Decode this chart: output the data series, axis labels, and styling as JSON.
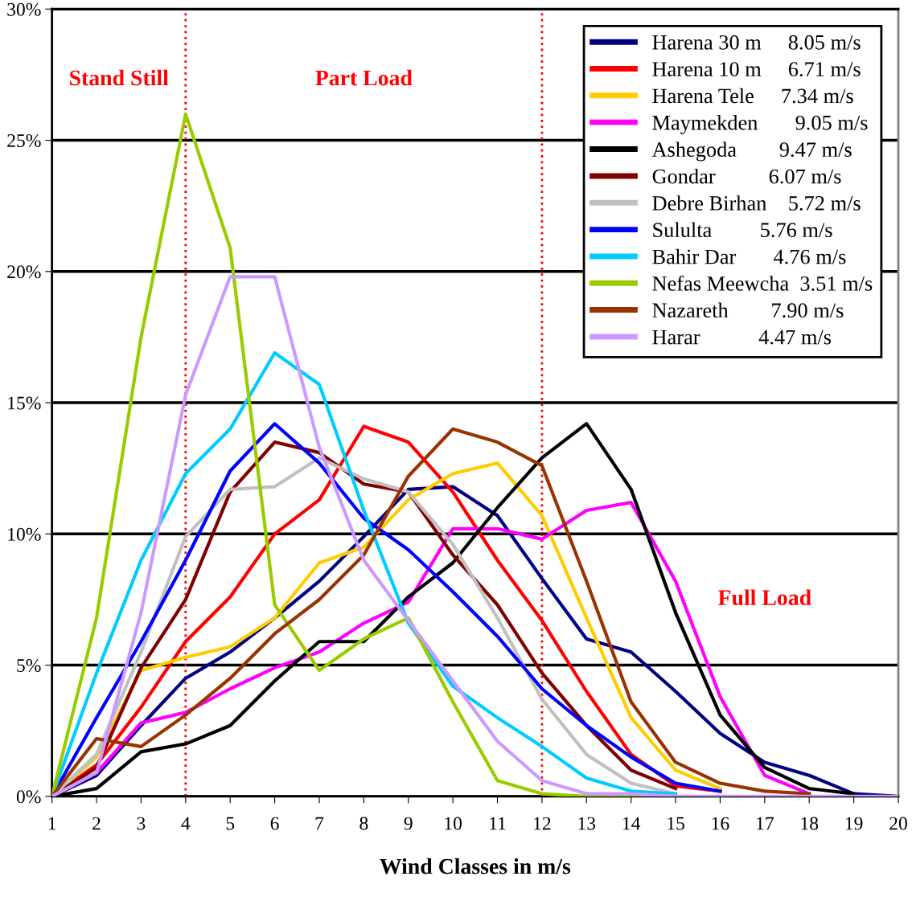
{
  "chart_data": {
    "type": "line",
    "xlabel": "Wind Classes in m/s",
    "x": [
      1,
      2,
      3,
      4,
      5,
      6,
      7,
      8,
      9,
      10,
      11,
      12,
      13,
      14,
      15,
      16,
      17,
      18,
      19,
      20
    ],
    "xlim": [
      1,
      20
    ],
    "xticks": [
      1,
      2,
      3,
      4,
      5,
      6,
      7,
      8,
      9,
      10,
      11,
      12,
      13,
      14,
      15,
      16,
      17,
      18,
      19,
      20
    ],
    "ylim": [
      0,
      30
    ],
    "yticks": [
      {
        "value": 0,
        "label": "0%"
      },
      {
        "value": 5,
        "label": "5%"
      },
      {
        "value": 10,
        "label": "10%"
      },
      {
        "value": 15,
        "label": "15%"
      },
      {
        "value": 20,
        "label": "20%"
      },
      {
        "value": 25,
        "label": "25%"
      },
      {
        "value": 30,
        "label": "30%"
      }
    ],
    "grid": "y",
    "legend": "top right",
    "ref_lines": [
      {
        "axis": "x",
        "value": 4,
        "color": "#ff0000",
        "line_style": "dotted"
      },
      {
        "axis": "x",
        "value": 12,
        "color": "#ff0000",
        "line_style": "dotted"
      }
    ],
    "annotations": [
      "Stand Still",
      "Part Load",
      "Full Load"
    ],
    "series": [
      {
        "name": "Harena 30 m     8.05 m/s",
        "color": "#000080",
        "values": [
          0,
          0.8,
          2.7,
          4.5,
          5.5,
          6.8,
          8.2,
          9.9,
          11.7,
          11.8,
          10.7,
          8.3,
          6.0,
          5.5,
          4.0,
          2.4,
          1.3,
          0.8,
          0.1,
          0
        ]
      },
      {
        "name": "Harena 10 m     6.71 m/s",
        "color": "#ff0000",
        "values": [
          0,
          1.2,
          3.4,
          5.9,
          7.6,
          10.0,
          11.3,
          14.1,
          13.5,
          11.6,
          9.0,
          6.7,
          4.0,
          1.6,
          0.4,
          0.2,
          null,
          null,
          null,
          null
        ]
      },
      {
        "name": "Harena Tele     7.34 m/s",
        "color": "#ffcc00",
        "values": [
          0,
          1.5,
          4.8,
          5.3,
          5.7,
          6.8,
          8.9,
          9.5,
          11.3,
          12.3,
          12.7,
          10.7,
          6.8,
          3.0,
          1.0,
          0.3,
          null,
          null,
          null,
          null
        ]
      },
      {
        "name": "Maymekden       9.05 m/s",
        "color": "#ff00ff",
        "values": [
          0,
          0.9,
          2.8,
          3.2,
          4.1,
          4.9,
          5.5,
          6.6,
          7.4,
          10.2,
          10.2,
          9.8,
          10.9,
          11.2,
          8.2,
          3.8,
          0.8,
          0.1,
          null,
          null
        ]
      },
      {
        "name": "Ashegoda        9.47 m/s",
        "color": "#000000",
        "values": [
          0,
          0.3,
          1.7,
          2.0,
          2.7,
          4.4,
          5.9,
          5.9,
          7.6,
          8.9,
          11.0,
          12.9,
          14.2,
          11.7,
          7.0,
          3.1,
          1.1,
          0.3,
          0.1,
          null
        ]
      },
      {
        "name": "Gondar          6.07 m/s",
        "color": "#800000",
        "values": [
          0,
          1.1,
          4.9,
          7.5,
          11.6,
          13.5,
          13.1,
          11.9,
          11.6,
          9.2,
          7.3,
          4.7,
          2.7,
          1.0,
          0.3,
          null,
          null,
          null,
          null,
          null
        ]
      },
      {
        "name": "Debre Birhan    5.72 m/s",
        "color": "#c0c0c0",
        "values": [
          0,
          1.6,
          5.5,
          9.9,
          11.7,
          11.8,
          12.9,
          12.1,
          11.6,
          9.6,
          6.8,
          3.7,
          1.6,
          0.5,
          0.1,
          null,
          null,
          null,
          null,
          null
        ]
      },
      {
        "name": "Sululta         5.76 m/s",
        "color": "#0000ff",
        "values": [
          0,
          3.0,
          5.9,
          9.0,
          12.4,
          14.2,
          12.7,
          10.6,
          9.4,
          7.8,
          6.1,
          4.1,
          2.7,
          1.5,
          0.5,
          0.2,
          null,
          null,
          null,
          null
        ]
      },
      {
        "name": "Bahir Dar       4.76 m/s",
        "color": "#00ccff",
        "values": [
          0,
          4.7,
          9.0,
          12.3,
          14.0,
          16.9,
          15.7,
          10.9,
          6.6,
          4.2,
          3.0,
          1.9,
          0.7,
          0.2,
          0.1,
          null,
          null,
          null,
          null,
          null
        ]
      },
      {
        "name": "Nefas Meewcha  3.51 m/s",
        "color": "#99cc00",
        "values": [
          0,
          6.8,
          17.5,
          26.0,
          20.9,
          7.3,
          4.8,
          6.0,
          6.8,
          3.6,
          0.6,
          0.1,
          0,
          0,
          0,
          null,
          null,
          null,
          null,
          null
        ]
      },
      {
        "name": "Nazareth        7.90 m/s",
        "color": "#993300",
        "values": [
          0,
          2.2,
          1.9,
          3.1,
          4.5,
          6.2,
          7.5,
          9.2,
          12.2,
          14.0,
          13.5,
          12.6,
          8.2,
          3.6,
          1.3,
          0.5,
          0.2,
          0.1,
          null,
          null
        ]
      },
      {
        "name": "Harar           4.47 m/s",
        "color": "#cc99ff",
        "values": [
          0,
          0.9,
          7.0,
          15.3,
          19.8,
          19.8,
          13.3,
          9.0,
          6.7,
          4.4,
          2.1,
          0.6,
          0.1,
          0.1,
          0,
          0,
          0,
          0,
          0,
          0
        ]
      }
    ]
  }
}
